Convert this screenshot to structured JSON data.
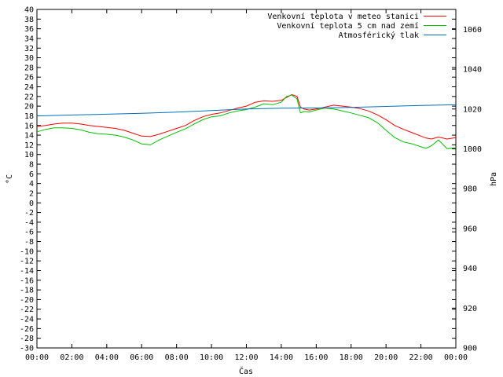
{
  "chart_data": {
    "type": "line",
    "title": "",
    "xlabel": "Čas",
    "ylabel": "°C",
    "y2label": "hPa",
    "x_ticks": [
      "00:00",
      "02:00",
      "04:00",
      "06:00",
      "08:00",
      "10:00",
      "12:00",
      "14:00",
      "16:00",
      "18:00",
      "20:00",
      "22:00",
      "00:00"
    ],
    "x_range_hours": [
      0,
      24
    ],
    "ylim": [
      -30,
      40
    ],
    "y_ticks": [
      -30,
      -28,
      -26,
      -24,
      -22,
      -20,
      -18,
      -16,
      -14,
      -12,
      -10,
      -8,
      -6,
      -4,
      -2,
      0,
      2,
      4,
      6,
      8,
      10,
      12,
      14,
      16,
      18,
      20,
      22,
      24,
      26,
      28,
      30,
      32,
      34,
      36,
      38,
      40
    ],
    "y2lim": [
      900,
      1070
    ],
    "y2_ticks": [
      900,
      920,
      940,
      960,
      980,
      1000,
      1020,
      1040,
      1060
    ],
    "grid": false,
    "legend_position": "top-right",
    "series": [
      {
        "name": "Venkovní teplota v meteo stanici",
        "color": "#ff0000",
        "axis": "left",
        "x": [
          0,
          0.5,
          1,
          1.5,
          2,
          2.5,
          3,
          3.5,
          4,
          4.5,
          5,
          5.5,
          6,
          6.5,
          7,
          7.5,
          8,
          8.5,
          9,
          9.5,
          10,
          10.5,
          11,
          11.5,
          12,
          12.5,
          13,
          13.5,
          14,
          14.3,
          14.6,
          14.9,
          15.1,
          15.3,
          15.6,
          16,
          16.5,
          17,
          17.5,
          18,
          18.5,
          19,
          19.5,
          20,
          20.5,
          21,
          21.5,
          22,
          22.3,
          22.6,
          23,
          23.5,
          24
        ],
        "y": [
          15.8,
          16.0,
          16.3,
          16.5,
          16.5,
          16.3,
          16.0,
          15.8,
          15.6,
          15.4,
          15.0,
          14.4,
          13.8,
          13.7,
          14.2,
          14.8,
          15.4,
          16.0,
          17.0,
          17.8,
          18.3,
          18.6,
          19.1,
          19.6,
          20.0,
          20.8,
          21.1,
          21.0,
          21.2,
          21.8,
          22.4,
          22.0,
          19.8,
          19.4,
          19.2,
          19.4,
          19.8,
          20.2,
          20.0,
          19.8,
          19.5,
          19.0,
          18.2,
          17.2,
          16.0,
          15.2,
          14.5,
          13.8,
          13.4,
          13.2,
          13.6,
          13.2,
          13.5
        ]
      },
      {
        "name": "Venkovní teplota 5 cm nad zemí",
        "color": "#00c000",
        "axis": "left",
        "x": [
          0,
          0.5,
          1,
          1.5,
          2,
          2.5,
          3,
          3.5,
          4,
          4.5,
          5,
          5.5,
          6,
          6.5,
          7,
          7.5,
          8,
          8.5,
          9,
          9.5,
          10,
          10.5,
          11,
          11.5,
          12,
          12.5,
          13,
          13.5,
          14,
          14.3,
          14.6,
          14.9,
          15.1,
          15.3,
          15.6,
          16,
          16.5,
          17,
          17.5,
          18,
          18.5,
          19,
          19.5,
          20,
          20.5,
          21,
          21.5,
          22,
          22.3,
          22.6,
          23,
          23.5,
          24
        ],
        "y": [
          14.7,
          15.2,
          15.5,
          15.5,
          15.4,
          15.1,
          14.6,
          14.3,
          14.2,
          14.0,
          13.6,
          13.0,
          12.2,
          12.0,
          13.0,
          13.8,
          14.6,
          15.3,
          16.3,
          17.2,
          17.8,
          18.0,
          18.6,
          19.0,
          19.3,
          19.8,
          20.5,
          20.3,
          20.8,
          22.0,
          22.3,
          21.5,
          18.6,
          18.9,
          18.8,
          19.2,
          19.6,
          19.4,
          19.0,
          18.6,
          18.1,
          17.6,
          16.6,
          15.0,
          13.5,
          12.6,
          12.2,
          11.6,
          11.3,
          11.8,
          13.0,
          11.2,
          11.4
        ]
      },
      {
        "name": "Atmosférický tlak",
        "color": "#0070c0",
        "axis": "right",
        "x": [
          0,
          2,
          4,
          6,
          8,
          10,
          12,
          14,
          16,
          18,
          20,
          22,
          24
        ],
        "y": [
          1016.5,
          1017.0,
          1017.4,
          1017.8,
          1018.4,
          1019.2,
          1020.0,
          1020.4,
          1020.5,
          1020.8,
          1021.3,
          1021.8,
          1022.1
        ]
      }
    ]
  }
}
